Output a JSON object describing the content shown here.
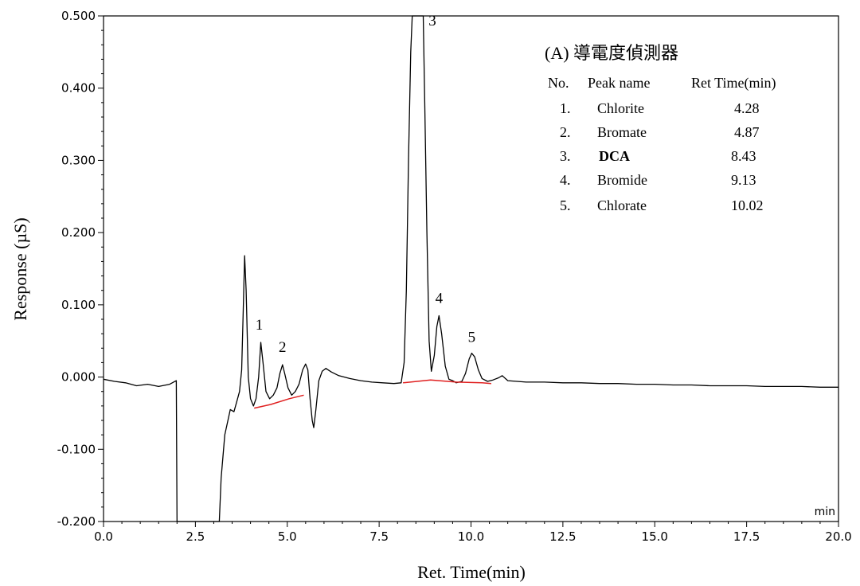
{
  "chart_data": {
    "type": "line",
    "xlabel": "Ret. Time(min)",
    "ylabel": "Response (µS)",
    "x_unit_label": "min",
    "xlim": [
      0,
      20
    ],
    "ylim": [
      -0.2,
      0.5
    ],
    "x_ticks": [
      "0.0",
      "2.5",
      "5.0",
      "7.5",
      "10.0",
      "12.5",
      "15.0",
      "17.5",
      "20.0"
    ],
    "y_ticks": [
      "-0.200",
      "-0.100",
      "0.000",
      "0.100",
      "0.200",
      "0.300",
      "0.400",
      "0.500"
    ],
    "legend": {
      "title": "(A) 導電度偵測器",
      "headers": [
        "No.",
        "Peak name",
        "Ret Time(min)"
      ],
      "rows": [
        {
          "no": "1.",
          "name": "Chlorite",
          "time": "4.28"
        },
        {
          "no": "2.",
          "name": "Bromate",
          "time": "4.87"
        },
        {
          "no": "3.",
          "name": "DCA",
          "time": "8.43"
        },
        {
          "no": "4.",
          "name": "Bromide",
          "time": "9.13"
        },
        {
          "no": "5.",
          "name": "Chlorate",
          "time": "10.02"
        }
      ]
    },
    "peak_labels": [
      {
        "label": "1",
        "x": 4.28,
        "y": 0.048
      },
      {
        "label": "2",
        "x": 4.87,
        "y": 0.017
      },
      {
        "label": "3",
        "x": 8.43,
        "y": 0.5
      },
      {
        "label": "4",
        "x": 9.13,
        "y": 0.085
      },
      {
        "label": "5",
        "x": 10.02,
        "y": 0.033
      }
    ],
    "series": [
      {
        "color": "#000000",
        "points": [
          [
            0.0,
            -0.003
          ],
          [
            0.3,
            -0.006
          ],
          [
            0.6,
            -0.008
          ],
          [
            0.9,
            -0.012
          ],
          [
            1.2,
            -0.01
          ],
          [
            1.5,
            -0.013
          ],
          [
            1.8,
            -0.01
          ],
          [
            1.98,
            -0.005
          ],
          [
            2.0,
            -0.2
          ],
          [
            3.15,
            -0.2
          ],
          [
            3.2,
            -0.14
          ],
          [
            3.3,
            -0.08
          ],
          [
            3.45,
            -0.045
          ],
          [
            3.55,
            -0.048
          ],
          [
            3.62,
            -0.035
          ],
          [
            3.7,
            -0.02
          ],
          [
            3.76,
            0.01
          ],
          [
            3.8,
            0.09
          ],
          [
            3.84,
            0.168
          ],
          [
            3.88,
            0.12
          ],
          [
            3.94,
            0.0
          ],
          [
            4.0,
            -0.03
          ],
          [
            4.08,
            -0.04
          ],
          [
            4.15,
            -0.03
          ],
          [
            4.22,
            0.0
          ],
          [
            4.28,
            0.048
          ],
          [
            4.34,
            0.02
          ],
          [
            4.42,
            -0.02
          ],
          [
            4.52,
            -0.03
          ],
          [
            4.62,
            -0.025
          ],
          [
            4.72,
            -0.015
          ],
          [
            4.8,
            0.005
          ],
          [
            4.87,
            0.017
          ],
          [
            4.93,
            0.005
          ],
          [
            5.02,
            -0.015
          ],
          [
            5.12,
            -0.025
          ],
          [
            5.22,
            -0.02
          ],
          [
            5.32,
            -0.01
          ],
          [
            5.42,
            0.01
          ],
          [
            5.5,
            0.018
          ],
          [
            5.56,
            0.01
          ],
          [
            5.62,
            -0.03
          ],
          [
            5.68,
            -0.06
          ],
          [
            5.72,
            -0.07
          ],
          [
            5.78,
            -0.045
          ],
          [
            5.86,
            -0.005
          ],
          [
            5.95,
            0.008
          ],
          [
            6.05,
            0.012
          ],
          [
            6.2,
            0.007
          ],
          [
            6.4,
            0.002
          ],
          [
            6.7,
            -0.002
          ],
          [
            7.0,
            -0.005
          ],
          [
            7.3,
            -0.007
          ],
          [
            7.6,
            -0.008
          ],
          [
            7.9,
            -0.009
          ],
          [
            8.1,
            -0.008
          ],
          [
            8.18,
            0.02
          ],
          [
            8.24,
            0.12
          ],
          [
            8.3,
            0.3
          ],
          [
            8.36,
            0.45
          ],
          [
            8.4,
            0.5
          ],
          [
            8.7,
            0.5
          ],
          [
            8.74,
            0.38
          ],
          [
            8.8,
            0.2
          ],
          [
            8.86,
            0.05
          ],
          [
            8.92,
            0.008
          ],
          [
            9.0,
            0.03
          ],
          [
            9.07,
            0.07
          ],
          [
            9.13,
            0.085
          ],
          [
            9.2,
            0.06
          ],
          [
            9.3,
            0.015
          ],
          [
            9.4,
            -0.003
          ],
          [
            9.5,
            -0.005
          ],
          [
            9.6,
            -0.008
          ],
          [
            9.75,
            -0.006
          ],
          [
            9.85,
            0.005
          ],
          [
            9.95,
            0.025
          ],
          [
            10.02,
            0.033
          ],
          [
            10.1,
            0.028
          ],
          [
            10.2,
            0.01
          ],
          [
            10.3,
            -0.002
          ],
          [
            10.45,
            -0.006
          ],
          [
            10.6,
            -0.004
          ],
          [
            10.75,
            -0.001
          ],
          [
            10.85,
            0.002
          ],
          [
            11.0,
            -0.005
          ],
          [
            11.5,
            -0.007
          ],
          [
            12.0,
            -0.007
          ],
          [
            12.5,
            -0.008
          ],
          [
            13.0,
            -0.008
          ],
          [
            13.5,
            -0.009
          ],
          [
            14.0,
            -0.009
          ],
          [
            14.5,
            -0.01
          ],
          [
            15.0,
            -0.01
          ],
          [
            15.5,
            -0.011
          ],
          [
            16.0,
            -0.011
          ],
          [
            16.5,
            -0.012
          ],
          [
            17.0,
            -0.012
          ],
          [
            17.5,
            -0.012
          ],
          [
            18.0,
            -0.013
          ],
          [
            18.5,
            -0.013
          ],
          [
            19.0,
            -0.013
          ],
          [
            19.5,
            -0.014
          ],
          [
            20.0,
            -0.014
          ]
        ]
      },
      {
        "color": "#e02020",
        "points": [
          [
            4.1,
            -0.043
          ],
          [
            4.55,
            -0.038
          ],
          [
            5.05,
            -0.03
          ],
          [
            5.45,
            -0.025
          ]
        ]
      },
      {
        "color": "#e02020",
        "points": [
          [
            8.15,
            -0.008
          ],
          [
            8.9,
            -0.004
          ],
          [
            9.6,
            -0.007
          ],
          [
            10.3,
            -0.008
          ],
          [
            10.55,
            -0.009
          ]
        ]
      }
    ],
    "grid": false,
    "legend_position": "top-right"
  }
}
